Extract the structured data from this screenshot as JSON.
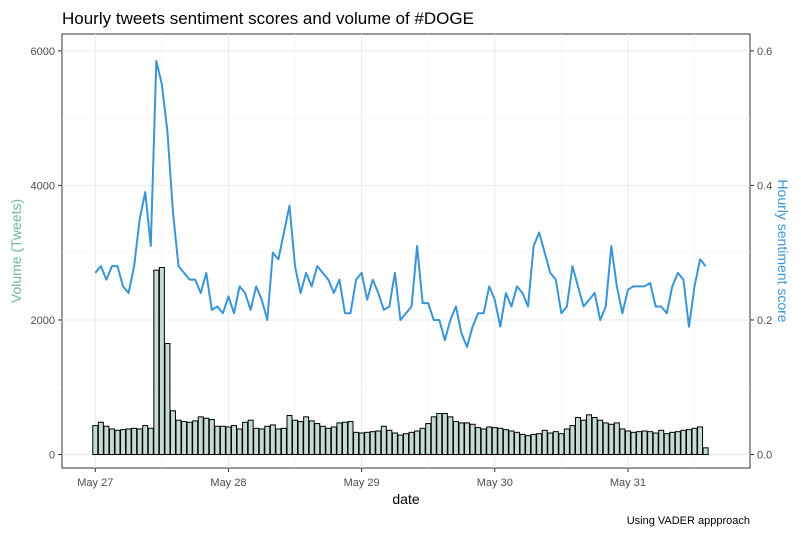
{
  "chart_data": {
    "type": "bar+line",
    "title": "Hourly tweets sentiment scores and volume of #DOGE",
    "xlabel": "date",
    "ylabel_left": "Volume (Tweets)",
    "ylabel_right": "Hourly sentiment score",
    "caption": "Using  VADER appproach",
    "x_ticks": [
      "May 27",
      "May 28",
      "May 29",
      "May 30",
      "May 31"
    ],
    "y_left_ticks": [
      "0",
      "2000",
      "4000",
      "6000"
    ],
    "y_right_ticks": [
      "0.0",
      "0.2",
      "0.4",
      "0.6"
    ],
    "y_left_range": [
      -200,
      6250
    ],
    "y_right_range": [
      -0.02,
      0.625
    ],
    "x_range_hours": [
      -6,
      118
    ],
    "grid": true,
    "colors": {
      "bar_fill": "#c4dbd3",
      "bar_stroke": "#000000",
      "line": "#3a95d6",
      "left_axis_label": "#72b59c",
      "right_axis_label": "#3a95d6"
    },
    "series": [
      {
        "name": "Volume (Tweets)",
        "kind": "bar",
        "axis": "left",
        "values": [
          430,
          480,
          420,
          380,
          360,
          370,
          380,
          390,
          380,
          430,
          390,
          2740,
          2780,
          1650,
          650,
          510,
          490,
          480,
          500,
          560,
          540,
          520,
          420,
          420,
          410,
          430,
          380,
          480,
          510,
          390,
          380,
          420,
          440,
          380,
          390,
          580,
          510,
          490,
          560,
          500,
          460,
          420,
          390,
          410,
          470,
          480,
          490,
          330,
          320,
          330,
          340,
          350,
          420,
          360,
          320,
          290,
          310,
          330,
          350,
          390,
          460,
          560,
          610,
          610,
          560,
          490,
          470,
          470,
          450,
          400,
          380,
          410,
          400,
          390,
          370,
          350,
          330,
          300,
          280,
          300,
          310,
          360,
          320,
          340,
          310,
          380,
          430,
          550,
          510,
          590,
          550,
          510,
          470,
          450,
          470,
          380,
          350,
          330,
          340,
          350,
          340,
          320,
          360,
          310,
          330,
          340,
          360,
          370,
          390,
          410,
          100
        ]
      },
      {
        "name": "Hourly sentiment score",
        "kind": "line",
        "axis": "right",
        "values": [
          0.27,
          0.28,
          0.26,
          0.28,
          0.28,
          0.25,
          0.24,
          0.28,
          0.35,
          0.39,
          0.31,
          0.585,
          0.55,
          0.48,
          0.36,
          0.28,
          0.27,
          0.26,
          0.26,
          0.24,
          0.27,
          0.215,
          0.22,
          0.21,
          0.235,
          0.21,
          0.25,
          0.24,
          0.215,
          0.25,
          0.23,
          0.2,
          0.3,
          0.29,
          0.33,
          0.37,
          0.28,
          0.24,
          0.27,
          0.25,
          0.28,
          0.27,
          0.26,
          0.24,
          0.26,
          0.21,
          0.21,
          0.26,
          0.27,
          0.23,
          0.26,
          0.24,
          0.215,
          0.22,
          0.27,
          0.2,
          0.21,
          0.22,
          0.31,
          0.225,
          0.225,
          0.2,
          0.2,
          0.17,
          0.2,
          0.22,
          0.18,
          0.16,
          0.19,
          0.21,
          0.21,
          0.25,
          0.23,
          0.19,
          0.24,
          0.22,
          0.25,
          0.24,
          0.22,
          0.31,
          0.33,
          0.3,
          0.27,
          0.26,
          0.21,
          0.22,
          0.28,
          0.25,
          0.22,
          0.23,
          0.24,
          0.2,
          0.22,
          0.31,
          0.25,
          0.21,
          0.245,
          0.25,
          0.25,
          0.25,
          0.255,
          0.22,
          0.22,
          0.21,
          0.25,
          0.27,
          0.26,
          0.19,
          0.25,
          0.29,
          0.28
        ]
      }
    ]
  }
}
